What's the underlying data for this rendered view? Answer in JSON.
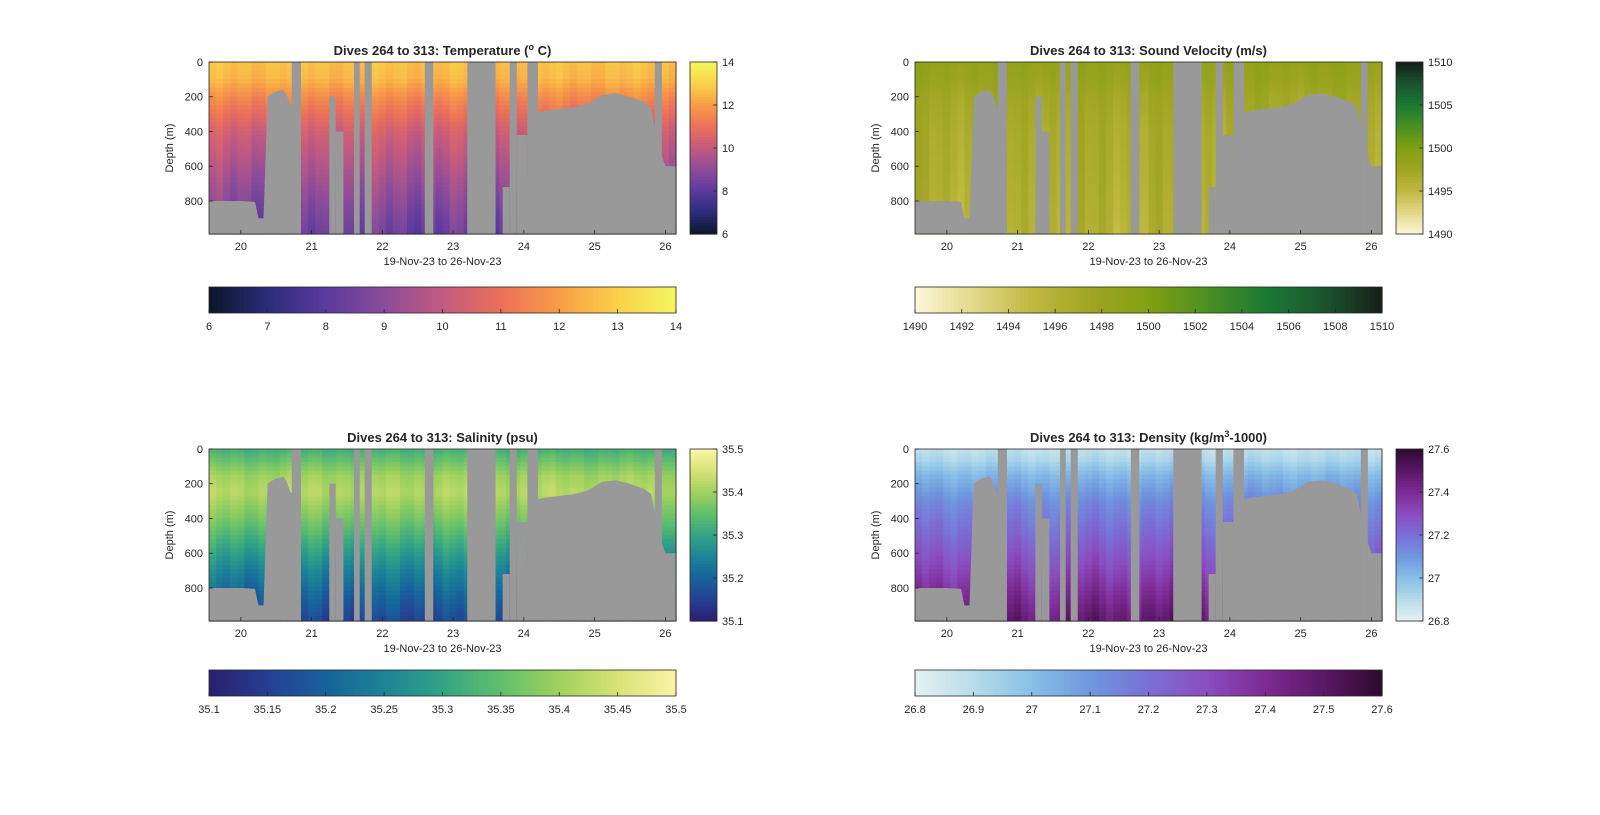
{
  "figure": {
    "background": "#ffffff",
    "mask_color": "#999999"
  },
  "chart_data": [
    {
      "type": "heatmap",
      "variable": "temperature",
      "title": "Dives 264 to 313: Temperature (",
      "title_sup": "o",
      "title_suffix": " C)",
      "xlabel": "19-Nov-23 to 26-Nov-23",
      "ylabel": "Depth (m)",
      "xlim": [
        19.55,
        26.15
      ],
      "ylim": [
        0,
        990
      ],
      "y_reversed": true,
      "xticks": [
        20,
        21,
        22,
        23,
        24,
        25,
        26
      ],
      "xtick_labels": [
        "20",
        "21",
        "22",
        "23",
        "24",
        "25",
        "26"
      ],
      "yticks": [
        0,
        200,
        400,
        600,
        800
      ],
      "ytick_labels": [
        "0",
        "200",
        "400",
        "600",
        "800"
      ],
      "clim": [
        6,
        14
      ],
      "colorbar_ticks": [
        6,
        8,
        10,
        12,
        14
      ],
      "colorbar_tick_labels": [
        "6",
        "8",
        "10",
        "12",
        "14"
      ],
      "hbar_ticks": [
        6,
        7,
        8,
        9,
        10,
        11,
        12,
        13,
        14
      ],
      "hbar_tick_labels": [
        "6",
        "7",
        "8",
        "9",
        "10",
        "11",
        "12",
        "13",
        "14"
      ],
      "colormap": [
        "#0b1528",
        "#2a2c7a",
        "#5b3a9e",
        "#8b4c9a",
        "#c35a7f",
        "#ec7059",
        "#f89d46",
        "#fad14a",
        "#f4f65e"
      ],
      "profile": {
        "depths": [
          0,
          100,
          200,
          400,
          600,
          800,
          990
        ],
        "values": [
          12.7,
          12.5,
          11.6,
          10.3,
          9.6,
          8.9,
          8.3
        ]
      }
    },
    {
      "type": "heatmap",
      "variable": "sound_velocity",
      "title": "Dives 264 to 313: Sound Velocity (m/s)",
      "title_sup": "",
      "title_suffix": "",
      "xlabel": "19-Nov-23 to 26-Nov-23",
      "ylabel": "Depth (m)",
      "xlim": [
        19.55,
        26.15
      ],
      "ylim": [
        0,
        990
      ],
      "y_reversed": true,
      "xticks": [
        20,
        21,
        22,
        23,
        24,
        25,
        26
      ],
      "xtick_labels": [
        "20",
        "21",
        "22",
        "23",
        "24",
        "25",
        "26"
      ],
      "yticks": [
        0,
        200,
        400,
        600,
        800
      ],
      "ytick_labels": [
        "0",
        "200",
        "400",
        "600",
        "800"
      ],
      "clim": [
        1490,
        1510
      ],
      "colorbar_ticks": [
        1490,
        1495,
        1500,
        1505,
        1510
      ],
      "colorbar_tick_labels": [
        "1490",
        "1495",
        "1500",
        "1505",
        "1510"
      ],
      "hbar_ticks": [
        1490,
        1492,
        1494,
        1496,
        1498,
        1500,
        1502,
        1504,
        1506,
        1508,
        1510
      ],
      "hbar_tick_labels": [
        "1490",
        "1492",
        "1494",
        "1496",
        "1498",
        "1500",
        "1502",
        "1504",
        "1506",
        "1508",
        "1510"
      ],
      "colormap": [
        "#fdf8d9",
        "#e3d88a",
        "#c0b940",
        "#a0a524",
        "#82a012",
        "#4b9020",
        "#1b7a33",
        "#1b5530",
        "#141f18"
      ],
      "profile": {
        "depths": [
          0,
          100,
          200,
          400,
          600,
          800,
          990
        ],
        "values": [
          1498.6,
          1498.2,
          1497.4,
          1496.8,
          1496.6,
          1496.3,
          1496.0
        ]
      }
    },
    {
      "type": "heatmap",
      "variable": "salinity",
      "title": "Dives 264 to 313: Salinity (psu)",
      "title_sup": "",
      "title_suffix": "",
      "xlabel": "19-Nov-23 to 26-Nov-23",
      "ylabel": "Depth (m)",
      "xlim": [
        19.55,
        26.15
      ],
      "ylim": [
        0,
        990
      ],
      "y_reversed": true,
      "xticks": [
        20,
        21,
        22,
        23,
        24,
        25,
        26
      ],
      "xtick_labels": [
        "20",
        "21",
        "22",
        "23",
        "24",
        "25",
        "26"
      ],
      "yticks": [
        0,
        200,
        400,
        600,
        800
      ],
      "ytick_labels": [
        "0",
        "200",
        "400",
        "600",
        "800"
      ],
      "clim": [
        35.1,
        35.5
      ],
      "colorbar_ticks": [
        35.1,
        35.2,
        35.3,
        35.4,
        35.5
      ],
      "colorbar_tick_labels": [
        "35.1",
        "35.2",
        "35.3",
        "35.4",
        "35.5"
      ],
      "hbar_ticks": [
        35.1,
        35.15,
        35.2,
        35.25,
        35.3,
        35.35,
        35.4,
        35.45,
        35.5
      ],
      "hbar_tick_labels": [
        "35.1",
        "35.15",
        "35.2",
        "35.25",
        "35.3",
        "35.35",
        "35.4",
        "35.45",
        "35.5"
      ],
      "colormap": [
        "#2a1e6e",
        "#253f92",
        "#17629c",
        "#1c8496",
        "#32a385",
        "#62bf6c",
        "#9fd15e",
        "#d8e276",
        "#fbf4a8"
      ],
      "profile": {
        "depths": [
          0,
          60,
          150,
          250,
          400,
          550,
          700,
          850,
          990
        ],
        "values": [
          35.32,
          35.35,
          35.4,
          35.42,
          35.37,
          35.31,
          35.25,
          35.2,
          35.16
        ]
      }
    },
    {
      "type": "heatmap",
      "variable": "density",
      "title": "Dives 264 to 313: Density (kg/m",
      "title_sup": "3",
      "title_suffix": "-1000)",
      "xlabel": "19-Nov-23 to 26-Nov-23",
      "ylabel": "Depth (m)",
      "xlim": [
        19.55,
        26.15
      ],
      "ylim": [
        0,
        990
      ],
      "y_reversed": true,
      "xticks": [
        20,
        21,
        22,
        23,
        24,
        25,
        26
      ],
      "xtick_labels": [
        "20",
        "21",
        "22",
        "23",
        "24",
        "25",
        "26"
      ],
      "yticks": [
        0,
        200,
        400,
        600,
        800
      ],
      "ytick_labels": [
        "0",
        "200",
        "400",
        "600",
        "800"
      ],
      "clim": [
        26.8,
        27.6
      ],
      "colorbar_ticks": [
        26.8,
        27,
        27.2,
        27.4,
        27.6
      ],
      "colorbar_tick_labels": [
        "26.8",
        "27",
        "27.2",
        "27.4",
        "27.6"
      ],
      "hbar_ticks": [
        26.8,
        26.9,
        27,
        27.1,
        27.2,
        27.3,
        27.4,
        27.5,
        27.6
      ],
      "hbar_tick_labels": [
        "26.8",
        "26.9",
        "27",
        "27.1",
        "27.2",
        "27.3",
        "27.4",
        "27.5",
        "27.6"
      ],
      "colormap": [
        "#e6f2f2",
        "#b8dcea",
        "#88c0e6",
        "#6f98df",
        "#7a6fd6",
        "#8a4dbf",
        "#7d2b94",
        "#5a1766",
        "#2e0a2e"
      ],
      "profile": {
        "depths": [
          0,
          60,
          150,
          300,
          500,
          700,
          990
        ],
        "values": [
          26.88,
          26.92,
          27.02,
          27.13,
          27.22,
          27.32,
          27.48
        ]
      }
    }
  ],
  "bathymetry": {
    "x": [
      19.55,
      19.8,
      20.0,
      20.2,
      20.25,
      20.32,
      20.38,
      20.45,
      20.5,
      20.6,
      20.65,
      20.7,
      20.8,
      20.85,
      20.9,
      21.0,
      21.1,
      21.2,
      21.3,
      21.4,
      21.5,
      21.6,
      21.7,
      21.8,
      21.9,
      22.0,
      22.1,
      22.2,
      22.3,
      22.4,
      22.5,
      22.6,
      22.7,
      22.8,
      22.9,
      23.0,
      23.1,
      23.2,
      23.25,
      23.3,
      23.5,
      23.7,
      23.8,
      23.9,
      24.0,
      24.1,
      24.3,
      24.5,
      24.7,
      24.9,
      25.1,
      25.3,
      25.5,
      25.7,
      25.8,
      25.9,
      26.0,
      26.1,
      26.15
    ],
    "depth": [
      800,
      800,
      800,
      805,
      900,
      900,
      200,
      180,
      170,
      160,
      190,
      250,
      260,
      990,
      990,
      990,
      990,
      990,
      990,
      990,
      990,
      990,
      990,
      990,
      990,
      990,
      990,
      990,
      990,
      990,
      990,
      990,
      990,
      990,
      990,
      990,
      990,
      990,
      990,
      990,
      990,
      990,
      990,
      990,
      990,
      300,
      280,
      270,
      260,
      240,
      190,
      180,
      200,
      230,
      260,
      480,
      600,
      600,
      600
    ]
  },
  "gaps": [
    {
      "x0": 20.72,
      "x1": 20.85,
      "top": 0
    },
    {
      "x0": 21.25,
      "x1": 21.34,
      "top": 200
    },
    {
      "x0": 21.34,
      "x1": 21.45,
      "top": 400
    },
    {
      "x0": 21.6,
      "x1": 21.68,
      "top": 0
    },
    {
      "x0": 21.75,
      "x1": 21.85,
      "top": 0
    },
    {
      "x0": 22.6,
      "x1": 22.72,
      "top": 0
    },
    {
      "x0": 23.2,
      "x1": 23.55,
      "top": 0
    },
    {
      "x0": 23.55,
      "x1": 23.6,
      "top": 0
    },
    {
      "x0": 23.7,
      "x1": 23.8,
      "top": 720
    },
    {
      "x0": 23.8,
      "x1": 23.9,
      "top": 0
    },
    {
      "x0": 23.9,
      "x1": 24.05,
      "top": 420
    },
    {
      "x0": 24.05,
      "x1": 24.2,
      "top": 0
    },
    {
      "x0": 25.85,
      "x1": 25.95,
      "top": 0
    }
  ]
}
